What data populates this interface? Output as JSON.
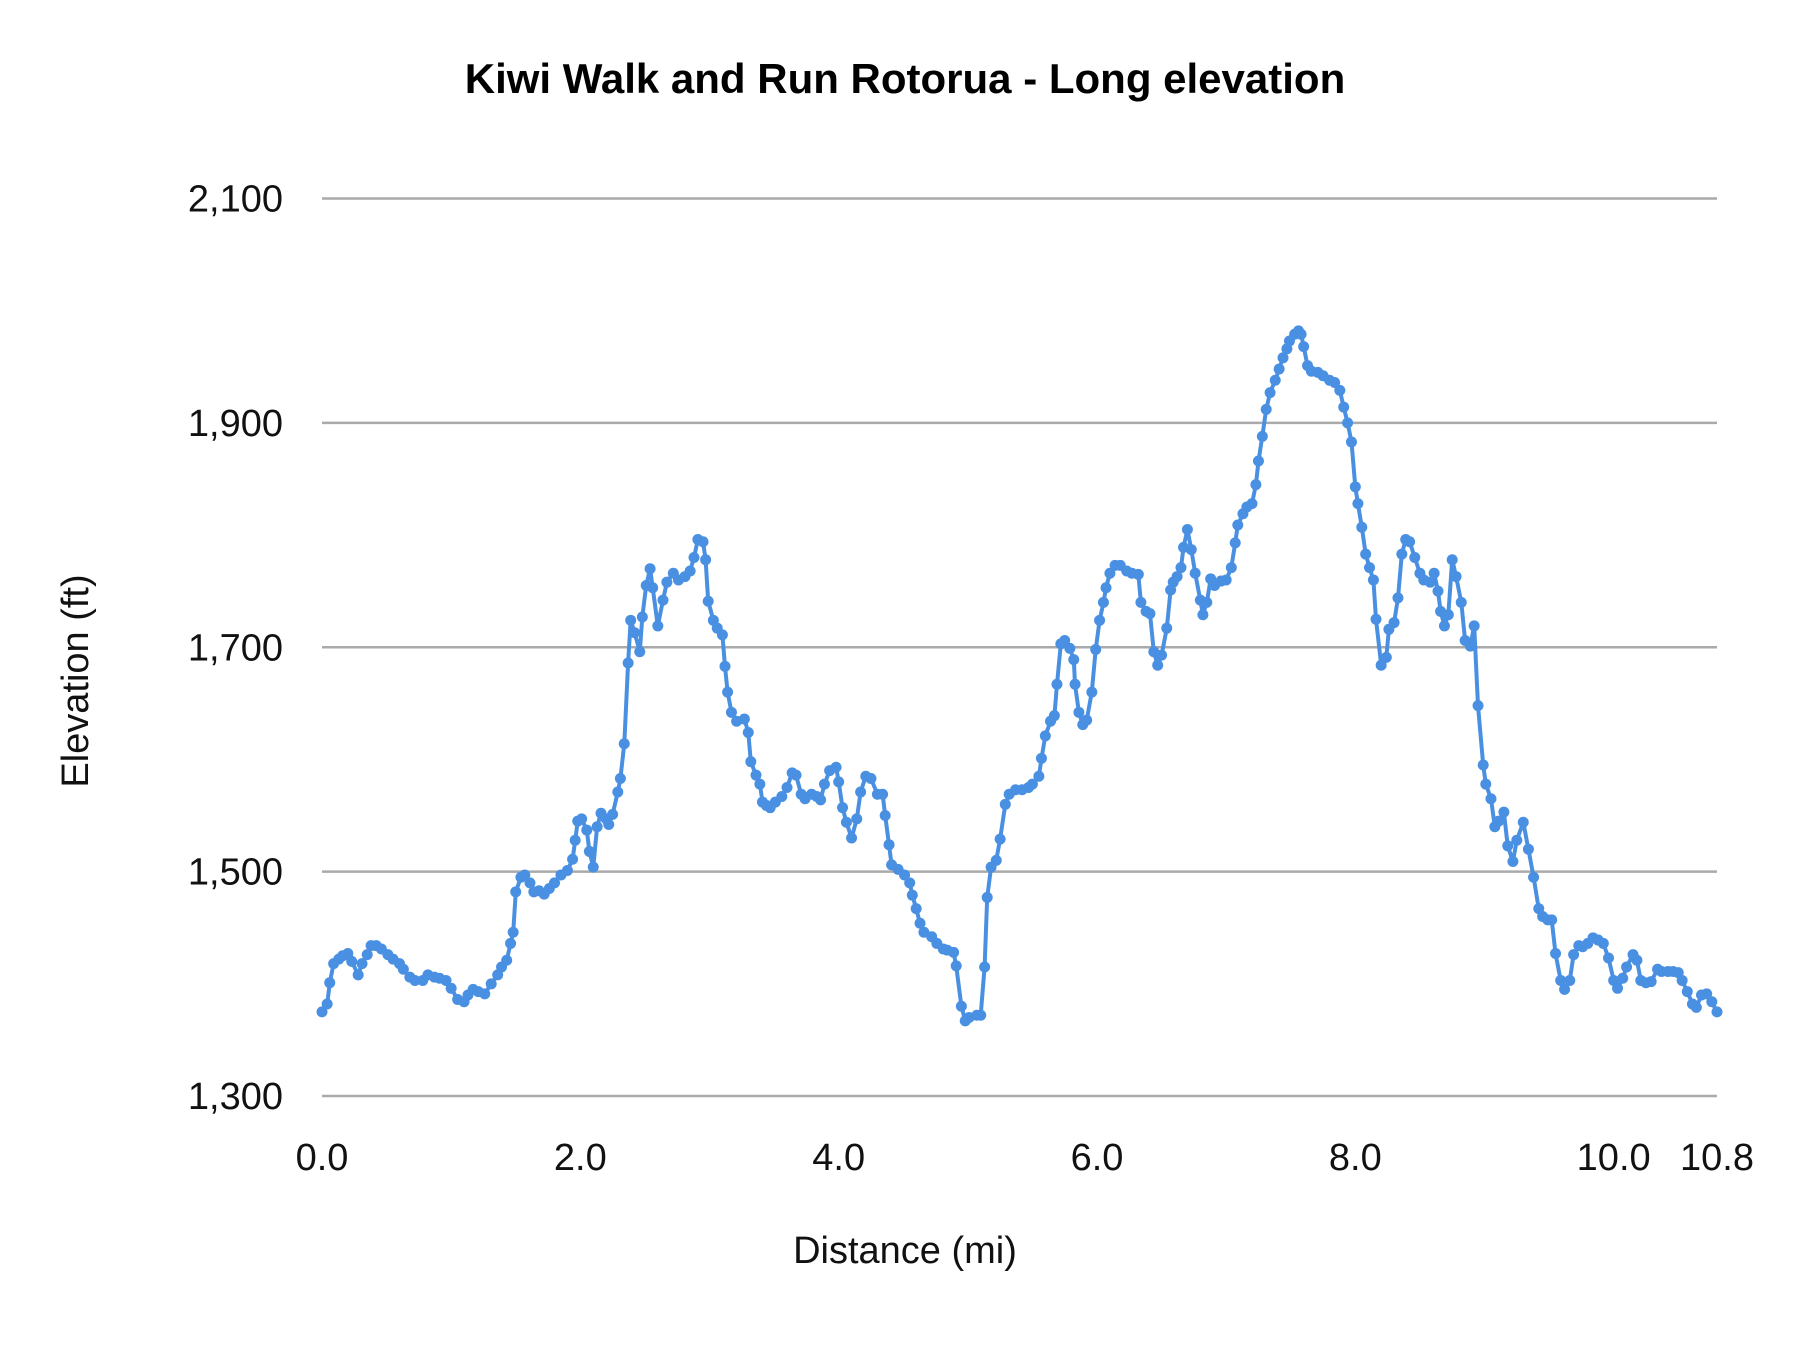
{
  "chart_data": {
    "type": "line",
    "title": "Kiwi Walk and Run Rotorua - Long elevation",
    "xlabel": "Distance (mi)",
    "ylabel": "Elevation (ft)",
    "xlim": [
      0,
      10.8
    ],
    "ylim": [
      1300,
      2100
    ],
    "x_ticks": [
      0,
      2,
      4,
      6,
      8,
      10,
      10.8
    ],
    "x_tick_labels": [
      "0.0",
      "2.0",
      "4.0",
      "6.0",
      "8.0",
      "10.0",
      "10.8"
    ],
    "y_ticks": [
      1300,
      1500,
      1700,
      1900,
      2100
    ],
    "y_tick_labels": [
      "1,300",
      "1,500",
      "1,700",
      "1,900",
      "2,100"
    ],
    "grid": "horizontal",
    "legend": "none",
    "markers": true,
    "series_color": "#4a90e2",
    "points": [
      [
        0,
        1375
      ],
      [
        0.04,
        1382
      ],
      [
        0.06,
        1401
      ],
      [
        0.09,
        1418
      ],
      [
        0.13,
        1422
      ],
      [
        0.16,
        1425
      ],
      [
        0.2,
        1427
      ],
      [
        0.23,
        1420
      ],
      [
        0.28,
        1408
      ],
      [
        0.31,
        1418
      ],
      [
        0.35,
        1426
      ],
      [
        0.38,
        1434
      ],
      [
        0.42,
        1434
      ],
      [
        0.46,
        1431
      ],
      [
        0.51,
        1426
      ],
      [
        0.55,
        1422
      ],
      [
        0.6,
        1418
      ],
      [
        0.63,
        1413
      ],
      [
        0.68,
        1406
      ],
      [
        0.72,
        1403
      ],
      [
        0.78,
        1403
      ],
      [
        0.82,
        1408
      ],
      [
        0.87,
        1406
      ],
      [
        0.91,
        1405
      ],
      [
        0.96,
        1403
      ],
      [
        1.0,
        1396
      ],
      [
        1.05,
        1386
      ],
      [
        1.1,
        1384
      ],
      [
        1.13,
        1390
      ],
      [
        1.17,
        1395
      ],
      [
        1.21,
        1393
      ],
      [
        1.26,
        1391
      ],
      [
        1.31,
        1400
      ],
      [
        1.36,
        1408
      ],
      [
        1.39,
        1415
      ],
      [
        1.43,
        1421
      ],
      [
        1.46,
        1436
      ],
      [
        1.48,
        1446
      ],
      [
        1.5,
        1482
      ],
      [
        1.54,
        1495
      ],
      [
        1.57,
        1497
      ],
      [
        1.61,
        1490
      ],
      [
        1.64,
        1482
      ],
      [
        1.68,
        1483
      ],
      [
        1.72,
        1480
      ],
      [
        1.76,
        1485
      ],
      [
        1.8,
        1490
      ],
      [
        1.85,
        1497
      ],
      [
        1.9,
        1501
      ],
      [
        1.94,
        1511
      ],
      [
        1.96,
        1528
      ],
      [
        1.98,
        1545
      ],
      [
        2.01,
        1547
      ],
      [
        2.05,
        1537
      ],
      [
        2.07,
        1518
      ],
      [
        2.1,
        1504
      ],
      [
        2.13,
        1540
      ],
      [
        2.16,
        1552
      ],
      [
        2.2,
        1547
      ],
      [
        2.22,
        1542
      ],
      [
        2.25,
        1551
      ],
      [
        2.29,
        1571
      ],
      [
        2.31,
        1583
      ],
      [
        2.34,
        1614
      ],
      [
        2.37,
        1686
      ],
      [
        2.39,
        1724
      ],
      [
        2.42,
        1713
      ],
      [
        2.46,
        1696
      ],
      [
        2.48,
        1727
      ],
      [
        2.51,
        1755
      ],
      [
        2.54,
        1770
      ],
      [
        2.56,
        1753
      ],
      [
        2.6,
        1719
      ],
      [
        2.64,
        1742
      ],
      [
        2.67,
        1758
      ],
      [
        2.72,
        1766
      ],
      [
        2.76,
        1760
      ],
      [
        2.81,
        1763
      ],
      [
        2.85,
        1768
      ],
      [
        2.88,
        1780
      ],
      [
        2.91,
        1796
      ],
      [
        2.95,
        1794
      ],
      [
        2.97,
        1778
      ],
      [
        2.99,
        1741
      ],
      [
        3.03,
        1724
      ],
      [
        3.06,
        1717
      ],
      [
        3.1,
        1711
      ],
      [
        3.12,
        1683
      ],
      [
        3.14,
        1660
      ],
      [
        3.17,
        1642
      ],
      [
        3.21,
        1634
      ],
      [
        3.27,
        1636
      ],
      [
        3.3,
        1624
      ],
      [
        3.32,
        1598
      ],
      [
        3.36,
        1586
      ],
      [
        3.39,
        1578
      ],
      [
        3.41,
        1562
      ],
      [
        3.44,
        1559
      ],
      [
        3.47,
        1557
      ],
      [
        3.51,
        1562
      ],
      [
        3.56,
        1567
      ],
      [
        3.6,
        1575
      ],
      [
        3.64,
        1588
      ],
      [
        3.67,
        1586
      ],
      [
        3.71,
        1569
      ],
      [
        3.74,
        1565
      ],
      [
        3.79,
        1569
      ],
      [
        3.83,
        1567
      ],
      [
        3.86,
        1564
      ],
      [
        3.89,
        1578
      ],
      [
        3.93,
        1590
      ],
      [
        3.98,
        1593
      ],
      [
        4.0,
        1580
      ],
      [
        4.03,
        1557
      ],
      [
        4.06,
        1544
      ],
      [
        4.1,
        1530
      ],
      [
        4.14,
        1547
      ],
      [
        4.17,
        1571
      ],
      [
        4.21,
        1585
      ],
      [
        4.25,
        1583
      ],
      [
        4.3,
        1569
      ],
      [
        4.34,
        1569
      ],
      [
        4.36,
        1550
      ],
      [
        4.39,
        1524
      ],
      [
        4.41,
        1506
      ],
      [
        4.46,
        1502
      ],
      [
        4.51,
        1497
      ],
      [
        4.55,
        1490
      ],
      [
        4.57,
        1479
      ],
      [
        4.6,
        1467
      ],
      [
        4.63,
        1454
      ],
      [
        4.66,
        1446
      ],
      [
        4.72,
        1442
      ],
      [
        4.76,
        1436
      ],
      [
        4.81,
        1431
      ],
      [
        4.84,
        1430
      ],
      [
        4.89,
        1428
      ],
      [
        4.91,
        1416
      ],
      [
        4.95,
        1380
      ],
      [
        4.98,
        1367
      ],
      [
        5.01,
        1370
      ],
      [
        5.07,
        1372
      ],
      [
        5.1,
        1372
      ],
      [
        5.13,
        1415
      ],
      [
        5.15,
        1477
      ],
      [
        5.18,
        1504
      ],
      [
        5.22,
        1510
      ],
      [
        5.25,
        1529
      ],
      [
        5.29,
        1560
      ],
      [
        5.32,
        1569
      ],
      [
        5.37,
        1573
      ],
      [
        5.42,
        1573
      ],
      [
        5.47,
        1575
      ],
      [
        5.5,
        1578
      ],
      [
        5.55,
        1585
      ],
      [
        5.57,
        1601
      ],
      [
        5.6,
        1621
      ],
      [
        5.64,
        1634
      ],
      [
        5.67,
        1639
      ],
      [
        5.69,
        1667
      ],
      [
        5.72,
        1703
      ],
      [
        5.75,
        1706
      ],
      [
        5.79,
        1699
      ],
      [
        5.82,
        1689
      ],
      [
        5.83,
        1667
      ],
      [
        5.86,
        1642
      ],
      [
        5.89,
        1631
      ],
      [
        5.92,
        1635
      ],
      [
        5.96,
        1660
      ],
      [
        5.99,
        1698
      ],
      [
        6.02,
        1724
      ],
      [
        6.05,
        1740
      ],
      [
        6.07,
        1753
      ],
      [
        6.1,
        1766
      ],
      [
        6.14,
        1773
      ],
      [
        6.18,
        1773
      ],
      [
        6.23,
        1768
      ],
      [
        6.27,
        1766
      ],
      [
        6.32,
        1765
      ],
      [
        6.34,
        1740
      ],
      [
        6.38,
        1732
      ],
      [
        6.41,
        1730
      ],
      [
        6.44,
        1696
      ],
      [
        6.47,
        1684
      ],
      [
        6.5,
        1693
      ],
      [
        6.54,
        1717
      ],
      [
        6.57,
        1751
      ],
      [
        6.59,
        1758
      ],
      [
        6.62,
        1763
      ],
      [
        6.65,
        1771
      ],
      [
        6.67,
        1789
      ],
      [
        6.7,
        1805
      ],
      [
        6.73,
        1787
      ],
      [
        6.76,
        1766
      ],
      [
        6.8,
        1742
      ],
      [
        6.82,
        1729
      ],
      [
        6.85,
        1740
      ],
      [
        6.88,
        1761
      ],
      [
        6.91,
        1755
      ],
      [
        6.96,
        1759
      ],
      [
        7.0,
        1760
      ],
      [
        7.04,
        1771
      ],
      [
        7.07,
        1793
      ],
      [
        7.09,
        1809
      ],
      [
        7.13,
        1819
      ],
      [
        7.16,
        1825
      ],
      [
        7.2,
        1828
      ],
      [
        7.23,
        1845
      ],
      [
        7.25,
        1866
      ],
      [
        7.28,
        1888
      ],
      [
        7.31,
        1912
      ],
      [
        7.34,
        1927
      ],
      [
        7.38,
        1938
      ],
      [
        7.41,
        1948
      ],
      [
        7.44,
        1958
      ],
      [
        7.47,
        1966
      ],
      [
        7.49,
        1973
      ],
      [
        7.53,
        1979
      ],
      [
        7.56,
        1982
      ],
      [
        7.58,
        1979
      ],
      [
        7.6,
        1968
      ],
      [
        7.63,
        1951
      ],
      [
        7.66,
        1946
      ],
      [
        7.71,
        1945
      ],
      [
        7.75,
        1942
      ],
      [
        7.8,
        1938
      ],
      [
        7.84,
        1936
      ],
      [
        7.88,
        1929
      ],
      [
        7.91,
        1914
      ],
      [
        7.94,
        1900
      ],
      [
        7.97,
        1883
      ],
      [
        8.0,
        1843
      ],
      [
        8.02,
        1828
      ],
      [
        8.05,
        1807
      ],
      [
        8.08,
        1783
      ],
      [
        8.11,
        1771
      ],
      [
        8.14,
        1760
      ],
      [
        8.16,
        1725
      ],
      [
        8.2,
        1684
      ],
      [
        8.24,
        1691
      ],
      [
        8.26,
        1716
      ],
      [
        8.3,
        1722
      ],
      [
        8.33,
        1744
      ],
      [
        8.36,
        1783
      ],
      [
        8.39,
        1796
      ],
      [
        8.42,
        1794
      ],
      [
        8.46,
        1780
      ],
      [
        8.5,
        1766
      ],
      [
        8.53,
        1760
      ],
      [
        8.58,
        1758
      ],
      [
        8.61,
        1766
      ],
      [
        8.64,
        1750
      ],
      [
        8.66,
        1732
      ],
      [
        8.69,
        1719
      ],
      [
        8.72,
        1729
      ],
      [
        8.75,
        1778
      ],
      [
        8.78,
        1763
      ],
      [
        8.82,
        1740
      ],
      [
        8.85,
        1706
      ],
      [
        8.89,
        1701
      ],
      [
        8.92,
        1719
      ],
      [
        8.95,
        1648
      ],
      [
        8.99,
        1595
      ],
      [
        9.01,
        1578
      ],
      [
        9.05,
        1565
      ],
      [
        9.08,
        1540
      ],
      [
        9.11,
        1545
      ],
      [
        9.15,
        1553
      ],
      [
        9.18,
        1523
      ],
      [
        9.22,
        1509
      ],
      [
        9.25,
        1528
      ],
      [
        9.3,
        1544
      ],
      [
        9.34,
        1520
      ],
      [
        9.38,
        1495
      ],
      [
        9.42,
        1467
      ],
      [
        9.45,
        1460
      ],
      [
        9.49,
        1457
      ],
      [
        9.52,
        1457
      ],
      [
        9.55,
        1427
      ],
      [
        9.59,
        1403
      ],
      [
        9.62,
        1395
      ],
      [
        9.66,
        1403
      ],
      [
        9.69,
        1426
      ],
      [
        9.73,
        1434
      ],
      [
        9.76,
        1433
      ],
      [
        9.8,
        1436
      ],
      [
        9.84,
        1441
      ],
      [
        9.88,
        1439
      ],
      [
        9.92,
        1436
      ],
      [
        9.96,
        1423
      ],
      [
        10.0,
        1403
      ],
      [
        10.03,
        1396
      ],
      [
        10.07,
        1405
      ],
      [
        10.1,
        1415
      ],
      [
        10.15,
        1426
      ],
      [
        10.18,
        1421
      ],
      [
        10.21,
        1403
      ],
      [
        10.25,
        1401
      ],
      [
        10.29,
        1402
      ],
      [
        10.34,
        1413
      ],
      [
        10.37,
        1411
      ],
      [
        10.42,
        1411
      ],
      [
        10.46,
        1411
      ],
      [
        10.5,
        1410
      ],
      [
        10.53,
        1403
      ],
      [
        10.57,
        1393
      ],
      [
        10.61,
        1382
      ],
      [
        10.64,
        1379
      ],
      [
        10.68,
        1390
      ],
      [
        10.72,
        1391
      ],
      [
        10.76,
        1384
      ],
      [
        10.8,
        1375
      ]
    ]
  }
}
